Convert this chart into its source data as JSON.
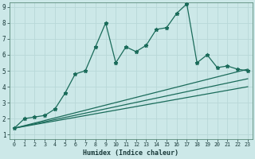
{
  "xlabel": "Humidex (Indice chaleur)",
  "bg_color": "#cce8e8",
  "grid_color": "#b0d4d4",
  "line_color": "#1a6b5a",
  "xlim": [
    -0.5,
    23.5
  ],
  "ylim": [
    0.7,
    9.3
  ],
  "xticks": [
    0,
    1,
    2,
    3,
    4,
    5,
    6,
    7,
    8,
    9,
    10,
    11,
    12,
    13,
    14,
    15,
    16,
    17,
    18,
    19,
    20,
    21,
    22,
    23
  ],
  "yticks": [
    1,
    2,
    3,
    4,
    5,
    6,
    7,
    8,
    9
  ],
  "data_x": [
    0,
    1,
    2,
    3,
    4,
    5,
    6,
    7,
    8,
    9,
    10,
    11,
    12,
    13,
    14,
    15,
    16,
    17,
    18,
    19,
    20,
    21,
    22,
    23
  ],
  "data_y": [
    1.4,
    2.0,
    2.1,
    2.2,
    2.6,
    3.6,
    4.8,
    5.0,
    6.5,
    8.0,
    5.5,
    6.5,
    6.2,
    6.6,
    7.6,
    7.7,
    8.6,
    9.2,
    5.5,
    6.0,
    5.2,
    5.3,
    5.1,
    5.0
  ],
  "trend_lines": [
    {
      "x": [
        0,
        23
      ],
      "y": [
        1.4,
        5.1
      ]
    },
    {
      "x": [
        0,
        23
      ],
      "y": [
        1.4,
        4.5
      ]
    },
    {
      "x": [
        0,
        23
      ],
      "y": [
        1.4,
        4.0
      ]
    }
  ]
}
